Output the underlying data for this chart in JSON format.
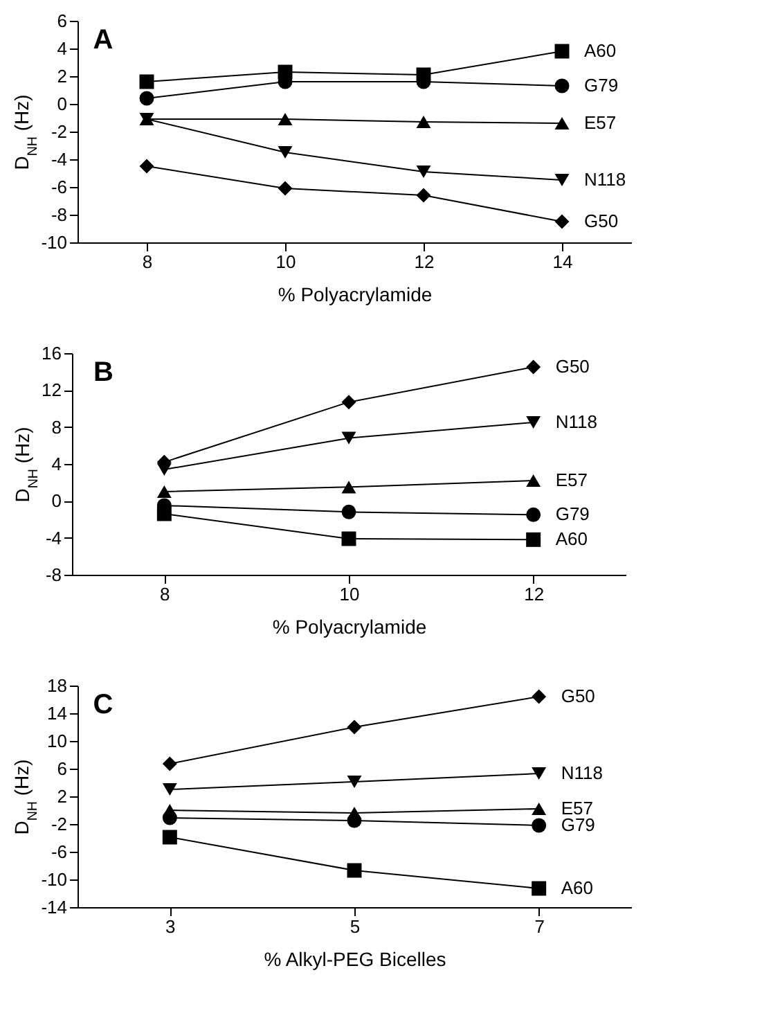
{
  "chart_data": [
    {
      "type": "line",
      "title": "A",
      "xlabel": "% Polyacrylamide",
      "ylabel": "D$_{NH}$ (Hz)",
      "x": [
        8,
        10,
        12,
        14
      ],
      "xlim": [
        7,
        15
      ],
      "xticks": [
        8,
        10,
        12,
        14
      ],
      "ylim": [
        -10,
        6
      ],
      "yticks": [
        -10,
        -8,
        -6,
        -4,
        -2,
        0,
        2,
        4,
        6
      ],
      "grid": false,
      "line_style": "solid",
      "series": [
        {
          "name": "A60",
          "color": "#000000",
          "marker": "square",
          "values": [
            1.6,
            2.3,
            2.1,
            3.8
          ]
        },
        {
          "name": "G79",
          "color": "#000000",
          "marker": "circle",
          "values": [
            0.4,
            1.6,
            1.6,
            1.3
          ]
        },
        {
          "name": "E57",
          "color": "#000000",
          "marker": "triangle",
          "values": [
            -1.1,
            -1.1,
            -1.3,
            -1.4
          ]
        },
        {
          "name": "N118",
          "color": "#000000",
          "marker": "triangle-down",
          "values": [
            -1.1,
            -3.5,
            -4.9,
            -5.5
          ]
        },
        {
          "name": "G50",
          "color": "#000000",
          "marker": "diamond",
          "values": [
            -4.5,
            -6.1,
            -6.6,
            -8.5
          ]
        }
      ]
    },
    {
      "type": "line",
      "title": "B",
      "xlabel": "% Polyacrylamide",
      "ylabel": "D$_{NH}$ (Hz)",
      "x": [
        8,
        10,
        12
      ],
      "xlim": [
        7,
        13
      ],
      "xticks": [
        8,
        10,
        12
      ],
      "ylim": [
        -8,
        16
      ],
      "yticks": [
        -8,
        -4,
        0,
        4,
        8,
        12,
        16
      ],
      "grid": false,
      "line_style": "solid",
      "series": [
        {
          "name": "G50",
          "color": "#000000",
          "marker": "diamond",
          "values": [
            4.2,
            10.7,
            14.5
          ]
        },
        {
          "name": "N118",
          "color": "#000000",
          "marker": "triangle-down",
          "values": [
            3.4,
            6.8,
            8.5
          ]
        },
        {
          "name": "E57",
          "color": "#000000",
          "marker": "triangle",
          "values": [
            1.0,
            1.5,
            2.2
          ]
        },
        {
          "name": "G79",
          "color": "#000000",
          "marker": "circle",
          "values": [
            -0.5,
            -1.2,
            -1.5
          ]
        },
        {
          "name": "A60",
          "color": "#000000",
          "marker": "square",
          "values": [
            -1.4,
            -4.1,
            -4.2
          ]
        }
      ]
    },
    {
      "type": "line",
      "title": "C",
      "xlabel": "% Alkyl-PEG Bicelles",
      "ylabel": "D$_{NH}$ (Hz)",
      "x": [
        3,
        5,
        7
      ],
      "xlim": [
        2,
        8
      ],
      "xticks": [
        3,
        5,
        7
      ],
      "ylim": [
        -14,
        18
      ],
      "yticks": [
        -14,
        -10,
        -6,
        -2,
        2,
        6,
        10,
        14,
        18
      ],
      "grid": false,
      "line_style": "solid",
      "series": [
        {
          "name": "G50",
          "color": "#000000",
          "marker": "diamond",
          "values": [
            6.7,
            12.0,
            16.4
          ]
        },
        {
          "name": "N118",
          "color": "#000000",
          "marker": "triangle-down",
          "values": [
            3.0,
            4.1,
            5.3
          ]
        },
        {
          "name": "E57",
          "color": "#000000",
          "marker": "triangle",
          "values": [
            0.0,
            -0.4,
            0.2
          ]
        },
        {
          "name": "G79",
          "color": "#000000",
          "marker": "circle",
          "values": [
            -1.1,
            -1.5,
            -2.2
          ]
        },
        {
          "name": "A60",
          "color": "#000000",
          "marker": "square",
          "values": [
            -3.9,
            -8.7,
            -11.3
          ]
        }
      ]
    }
  ]
}
